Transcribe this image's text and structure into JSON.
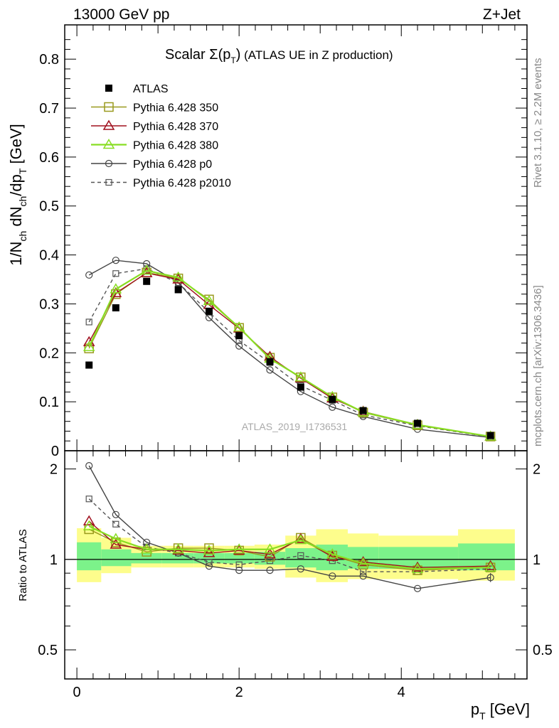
{
  "header": {
    "left": "13000 GeV pp",
    "right": "Z+Jet"
  },
  "title": {
    "main": "Scalar Σ(p",
    "sub": "T",
    "close": ")",
    "rest": " (ATLAS UE in Z production)"
  },
  "side_labels": {
    "rivet": "Rivet 3.1.10, ≥ 2.2M events",
    "mcplots": "mcplots.cern.ch [arXiv:1306.3436]"
  },
  "watermark": "ATLAS_2019_I1736531",
  "axes": {
    "ylabel_main": "1/N_ch dN_ch/dp_T [GeV]",
    "ylabel_ratio": "Ratio to ATLAS",
    "xlabel": "p_T [GeV]"
  },
  "colors": {
    "atlas": "#000000",
    "p350": "#9a9a1e",
    "p370": "#a0101e",
    "p380": "#88dd22",
    "p0": "#444444",
    "p2010": "#555555",
    "band_inner": "#7cf28a",
    "band_outer": "#fdfd8c"
  },
  "chart_data": [
    {
      "type": "scatter",
      "panel": "main",
      "xlabel": "p_T [GeV]",
      "ylabel": "1/N_ch dN_ch/dp_T [GeV]",
      "xlim": [
        -0.15,
        5.55
      ],
      "ylim": [
        0,
        0.87
      ],
      "yticks": [
        "0",
        "0.1",
        "0.2",
        "0.3",
        "0.4",
        "0.5",
        "0.6",
        "0.7",
        "0.8"
      ],
      "legend_position": "top-left",
      "x": [
        0.15,
        0.48,
        0.86,
        1.25,
        1.63,
        2.0,
        2.38,
        2.76,
        3.15,
        3.53,
        4.2,
        5.1
      ],
      "series": [
        {
          "name": "ATLAS",
          "key": "atlas",
          "marker": "square-filled",
          "line": "none",
          "values": [
            0.175,
            0.292,
            0.346,
            0.329,
            0.285,
            0.235,
            0.182,
            0.13,
            0.105,
            0.082,
            0.056,
            0.031
          ]
        },
        {
          "name": "Pythia 6.428 350",
          "key": "p350",
          "marker": "square-open",
          "line": "solid",
          "values": [
            0.209,
            0.32,
            0.364,
            0.352,
            0.309,
            0.251,
            0.19,
            0.15,
            0.109,
            0.078,
            0.052,
            0.029
          ]
        },
        {
          "name": "Pythia 6.428 370",
          "key": "p370",
          "marker": "triangle-open",
          "line": "solid",
          "values": [
            0.222,
            0.322,
            0.363,
            0.35,
            0.298,
            0.25,
            0.192,
            0.148,
            0.107,
            0.08,
            0.053,
            0.029
          ]
        },
        {
          "name": "Pythia 6.428 380",
          "key": "p380",
          "marker": "triangle-open",
          "line": "solid",
          "values": [
            0.212,
            0.33,
            0.368,
            0.354,
            0.306,
            0.252,
            0.188,
            0.15,
            0.11,
            0.079,
            0.053,
            0.029
          ]
        },
        {
          "name": "Pythia 6.428 p0",
          "key": "p0",
          "marker": "circle-open",
          "line": "solid",
          "values": [
            0.359,
            0.389,
            0.382,
            0.344,
            0.272,
            0.214,
            0.165,
            0.121,
            0.089,
            0.07,
            0.044,
            0.027
          ]
        },
        {
          "name": "Pythia 6.428 p2010",
          "key": "p2010",
          "marker": "square-open-small",
          "line": "dashed",
          "values": [
            0.263,
            0.362,
            0.372,
            0.343,
            0.283,
            0.225,
            0.18,
            0.133,
            0.103,
            0.073,
            0.051,
            0.028
          ]
        }
      ]
    },
    {
      "type": "scatter",
      "panel": "ratio",
      "ylabel": "Ratio to ATLAS",
      "xlabel": "p_T [GeV]",
      "xlim": [
        -0.15,
        5.55
      ],
      "ylim": [
        0.4,
        2.3
      ],
      "yscale": "log",
      "yticks": [
        "0.5",
        "1",
        "2"
      ],
      "xticks": [
        "0",
        "2",
        "4"
      ],
      "x": [
        0.15,
        0.48,
        0.86,
        1.25,
        1.63,
        2.0,
        2.38,
        2.76,
        3.15,
        3.53,
        4.2,
        5.1
      ],
      "bands": {
        "edges": [
          0.0,
          0.3,
          0.67,
          1.05,
          1.44,
          1.82,
          2.19,
          2.57,
          2.95,
          3.34,
          3.72,
          4.7,
          5.4
        ],
        "outer_low": [
          0.84,
          0.9,
          0.94,
          0.94,
          0.94,
          0.94,
          0.93,
          0.87,
          0.84,
          0.86,
          0.86,
          0.85
        ],
        "outer_high": [
          1.27,
          1.18,
          1.11,
          1.11,
          1.11,
          1.11,
          1.12,
          1.2,
          1.26,
          1.22,
          1.2,
          1.26
        ],
        "inner_low": [
          0.92,
          0.95,
          0.97,
          0.97,
          0.97,
          0.97,
          0.96,
          0.94,
          0.92,
          0.93,
          0.93,
          0.92
        ],
        "inner_high": [
          1.14,
          1.08,
          1.05,
          1.05,
          1.05,
          1.05,
          1.06,
          1.09,
          1.12,
          1.1,
          1.1,
          1.13
        ]
      },
      "series": [
        {
          "name": "Pythia 6.428 350",
          "key": "p350",
          "values": [
            1.26,
            1.14,
            1.06,
            1.09,
            1.09,
            1.07,
            1.02,
            1.18,
            1.03,
            0.96,
            0.92,
            0.94
          ]
        },
        {
          "name": "Pythia 6.428 370",
          "key": "p370",
          "values": [
            1.34,
            1.12,
            1.08,
            1.07,
            1.05,
            1.07,
            1.04,
            1.17,
            1.02,
            0.98,
            0.94,
            0.95
          ]
        },
        {
          "name": "Pythia 6.428 380",
          "key": "p380",
          "values": [
            1.29,
            1.17,
            1.08,
            1.08,
            1.07,
            1.08,
            1.08,
            1.16,
            1.04,
            0.97,
            0.93,
            0.94
          ]
        },
        {
          "name": "Pythia 6.428 p0",
          "key": "p0",
          "values": [
            2.05,
            1.41,
            1.14,
            1.05,
            0.95,
            0.92,
            0.92,
            0.93,
            0.88,
            0.88,
            0.8,
            0.87
          ]
        },
        {
          "name": "Pythia 6.428 p2010",
          "key": "p2010",
          "values": [
            1.59,
            1.31,
            1.1,
            1.05,
            0.98,
            0.96,
            0.99,
            1.03,
            0.99,
            0.91,
            0.91,
            0.93
          ]
        }
      ]
    }
  ]
}
